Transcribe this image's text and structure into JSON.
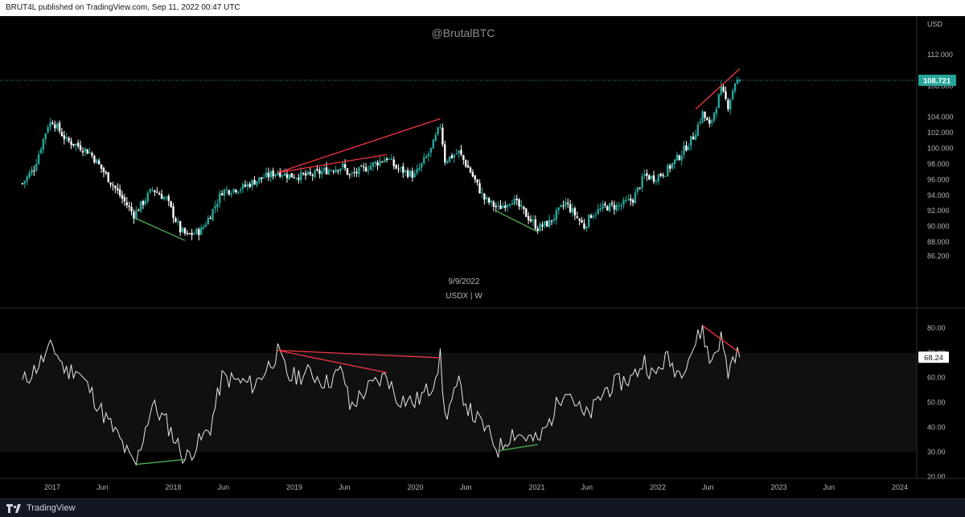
{
  "header": {
    "text": "BRUT4L published on TradingView.com, Sep 11, 2022 00:47 UTC"
  },
  "footer": {
    "brand": "TradingView",
    "logo_icon": "tradingview-logo-icon"
  },
  "colors": {
    "background": "#000000",
    "axis_text": "#b2b5be",
    "up": "#26a69a",
    "down": "#ffffff",
    "divergence_bear": "#f23645",
    "divergence_bull": "#4caf50",
    "price_label_bg": "#26a69a",
    "rsi_line": "#e6e6e6",
    "rsi_band": "#101010"
  },
  "chart_data": [
    {
      "type": "candlestick",
      "title": "@BrutalBTC",
      "symbol_label": "USDX | W",
      "date_label": "9/9/2022",
      "currency": "USD",
      "ylim": [
        85,
        114
      ],
      "y_ticks": [
        "112.000",
        "108.000",
        "104.000",
        "102.000",
        "100.000",
        "98.000",
        "96.000",
        "94.000",
        "92.000",
        "90.000",
        "88.000",
        "86.200"
      ],
      "last_price": "108.721",
      "x_ticks": [
        "2017",
        "Jun",
        "2018",
        "Jun",
        "2019",
        "Jun",
        "2020",
        "Jun",
        "2021",
        "Jun",
        "2022",
        "Jun",
        "2023",
        "Jun",
        "2024"
      ],
      "x_tick_dates": [
        "2017-01-01",
        "2017-06-01",
        "2018-01-01",
        "2018-06-01",
        "2019-01-01",
        "2019-06-01",
        "2020-01-01",
        "2020-06-01",
        "2021-01-01",
        "2021-06-01",
        "2022-01-01",
        "2022-06-01",
        "2023-01-01",
        "2023-06-01",
        "2024-01-01"
      ],
      "close_path": [
        [
          "2016-10-03",
          95.5
        ],
        [
          "2016-11-07",
          97.5
        ],
        [
          "2016-12-19",
          103.0
        ],
        [
          "2017-01-02",
          103.5
        ],
        [
          "2017-02-13",
          101.0
        ],
        [
          "2017-03-13",
          100.5
        ],
        [
          "2017-04-24",
          99.5
        ],
        [
          "2017-06-05",
          97.0
        ],
        [
          "2017-07-24",
          94.0
        ],
        [
          "2017-09-04",
          91.5
        ],
        [
          "2017-10-09",
          93.5
        ],
        [
          "2017-10-30",
          94.8
        ],
        [
          "2017-12-11",
          93.5
        ],
        [
          "2018-01-22",
          89.5
        ],
        [
          "2018-02-12",
          88.8
        ],
        [
          "2018-03-26",
          89.5
        ],
        [
          "2018-04-23",
          91.5
        ],
        [
          "2018-05-28",
          94.5
        ],
        [
          "2018-07-30",
          95.0
        ],
        [
          "2018-09-03",
          95.8
        ],
        [
          "2018-11-12",
          97.0
        ],
        [
          "2018-12-17",
          96.5
        ],
        [
          "2019-02-18",
          96.5
        ],
        [
          "2019-04-08",
          97.2
        ],
        [
          "2019-05-27",
          97.7
        ],
        [
          "2019-06-17",
          96.5
        ],
        [
          "2019-08-05",
          97.5
        ],
        [
          "2019-10-07",
          98.8
        ],
        [
          "2019-11-04",
          97.5
        ],
        [
          "2019-12-30",
          96.5
        ],
        [
          "2020-02-17",
          99.8
        ],
        [
          "2020-03-16",
          103.0
        ],
        [
          "2020-03-30",
          98.5
        ],
        [
          "2020-05-11",
          99.5
        ],
        [
          "2020-06-15",
          97.0
        ],
        [
          "2020-07-27",
          93.5
        ],
        [
          "2020-09-07",
          92.3
        ],
        [
          "2020-10-19",
          93.5
        ],
        [
          "2020-11-30",
          91.5
        ],
        [
          "2021-01-04",
          89.8
        ],
        [
          "2021-02-08",
          90.5
        ],
        [
          "2021-03-29",
          93.0
        ],
        [
          "2021-05-24",
          90.0
        ],
        [
          "2021-06-14",
          91.5
        ],
        [
          "2021-07-26",
          92.5
        ],
        [
          "2021-09-06",
          92.6
        ],
        [
          "2021-10-18",
          93.5
        ],
        [
          "2021-11-22",
          96.5
        ],
        [
          "2021-12-20",
          96.2
        ],
        [
          "2022-01-24",
          97.0
        ],
        [
          "2022-03-07",
          99.0
        ],
        [
          "2022-04-18",
          101.5
        ],
        [
          "2022-05-16",
          104.5
        ],
        [
          "2022-06-06",
          102.8
        ],
        [
          "2022-07-11",
          107.5
        ],
        [
          "2022-08-01",
          105.5
        ],
        [
          "2022-08-22",
          108.5
        ],
        [
          "2022-09-05",
          108.721
        ]
      ],
      "divergence_lines": [
        {
          "kind": "bear",
          "from": [
            "2018-11-12",
            96.9
          ],
          "to": [
            "2020-03-16",
            103.8
          ]
        },
        {
          "kind": "bear",
          "from": [
            "2018-11-12",
            96.9
          ],
          "to": [
            "2019-10-07",
            99.2
          ]
        },
        {
          "kind": "bull",
          "from": [
            "2017-09-11",
            91.0
          ],
          "to": [
            "2018-02-05",
            88.2
          ]
        },
        {
          "kind": "bull",
          "from": [
            "2020-08-31",
            92.0
          ],
          "to": [
            "2021-01-04",
            89.3
          ]
        },
        {
          "kind": "bear",
          "from": [
            "2022-04-25",
            105.0
          ],
          "to": [
            "2022-09-05",
            110.2
          ]
        }
      ]
    },
    {
      "type": "line",
      "indicator": "RSI",
      "ylim": [
        20,
        84
      ],
      "y_ticks": [
        "80.00",
        "70.00",
        "60.00",
        "50.00",
        "40.00",
        "30.00",
        "20.00"
      ],
      "band": [
        30,
        70
      ],
      "last_value": "68.24",
      "series": [
        {
          "points": [
            [
              "2016-10-03",
              58
            ],
            [
              "2016-11-07",
              63
            ],
            [
              "2016-12-19",
              70
            ],
            [
              "2017-01-02",
              73
            ],
            [
              "2017-02-13",
              62
            ],
            [
              "2017-03-13",
              64
            ],
            [
              "2017-04-24",
              55
            ],
            [
              "2017-06-05",
              45
            ],
            [
              "2017-07-24",
              35
            ],
            [
              "2017-08-28",
              26
            ],
            [
              "2017-09-11",
              25
            ],
            [
              "2017-10-09",
              40
            ],
            [
              "2017-10-30",
              49
            ],
            [
              "2017-12-11",
              42
            ],
            [
              "2018-01-22",
              31
            ],
            [
              "2018-02-05",
              27
            ],
            [
              "2018-03-26",
              35
            ],
            [
              "2018-04-23",
              40
            ],
            [
              "2018-05-28",
              60
            ],
            [
              "2018-07-30",
              58
            ],
            [
              "2018-09-03",
              57
            ],
            [
              "2018-11-12",
              70
            ],
            [
              "2018-12-17",
              60
            ],
            [
              "2019-02-18",
              62
            ],
            [
              "2019-04-08",
              58
            ],
            [
              "2019-05-27",
              63
            ],
            [
              "2019-06-17",
              48
            ],
            [
              "2019-08-05",
              55
            ],
            [
              "2019-10-07",
              61
            ],
            [
              "2019-11-04",
              52
            ],
            [
              "2019-12-30",
              50
            ],
            [
              "2020-02-17",
              56
            ],
            [
              "2020-03-16",
              68
            ],
            [
              "2020-03-30",
              44
            ],
            [
              "2020-05-11",
              57
            ],
            [
              "2020-06-15",
              46
            ],
            [
              "2020-07-27",
              40
            ],
            [
              "2020-09-07",
              31
            ],
            [
              "2020-10-19",
              38
            ],
            [
              "2020-11-30",
              36
            ],
            [
              "2021-01-04",
              34
            ],
            [
              "2021-02-08",
              42
            ],
            [
              "2021-03-29",
              57
            ],
            [
              "2021-05-24",
              44
            ],
            [
              "2021-06-14",
              46
            ],
            [
              "2021-07-26",
              55
            ],
            [
              "2021-09-06",
              58
            ],
            [
              "2021-10-18",
              60
            ],
            [
              "2021-11-22",
              67
            ],
            [
              "2021-12-20",
              60
            ],
            [
              "2022-01-24",
              68
            ],
            [
              "2022-03-07",
              62
            ],
            [
              "2022-04-18",
              72
            ],
            [
              "2022-05-16",
              80
            ],
            [
              "2022-06-06",
              66
            ],
            [
              "2022-07-11",
              76
            ],
            [
              "2022-08-01",
              62
            ],
            [
              "2022-08-22",
              70
            ],
            [
              "2022-09-05",
              68.24
            ]
          ]
        }
      ],
      "divergence_lines": [
        {
          "kind": "bear",
          "from": [
            "2018-11-12",
            71
          ],
          "to": [
            "2020-03-16",
            68
          ]
        },
        {
          "kind": "bear",
          "from": [
            "2018-11-12",
            71
          ],
          "to": [
            "2019-10-07",
            62
          ]
        },
        {
          "kind": "bull",
          "from": [
            "2017-09-11",
            25
          ],
          "to": [
            "2018-02-05",
            27
          ]
        },
        {
          "kind": "bull",
          "from": [
            "2020-09-07",
            30.5
          ],
          "to": [
            "2021-01-04",
            33
          ]
        },
        {
          "kind": "bear",
          "from": [
            "2022-05-16",
            81
          ],
          "to": [
            "2022-09-05",
            70
          ]
        }
      ]
    }
  ]
}
